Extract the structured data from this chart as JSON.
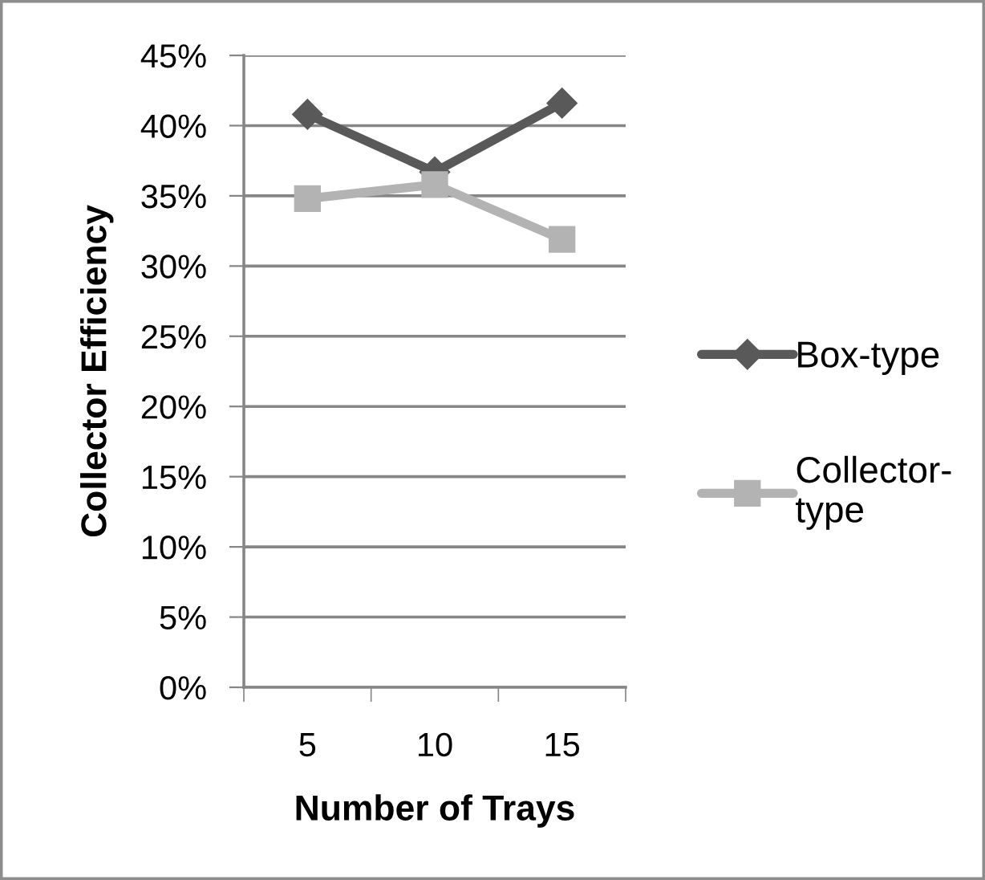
{
  "chart_data": {
    "type": "line",
    "xlabel": "Number of Trays",
    "ylabel": "Collector Efficiency",
    "categories": [
      "5",
      "10",
      "15"
    ],
    "series": [
      {
        "name": "Box-type",
        "color": "#595959",
        "marker": "diamond",
        "values": [
          40.8,
          36.7,
          41.6
        ]
      },
      {
        "name": "Collector-type",
        "color": "#b3b3b3",
        "marker": "square",
        "values": [
          34.8,
          35.8,
          31.9
        ]
      }
    ],
    "ylim": [
      0,
      45
    ],
    "yticks": [
      {
        "value": 0,
        "label": "0%"
      },
      {
        "value": 5,
        "label": "5%"
      },
      {
        "value": 10,
        "label": "10%"
      },
      {
        "value": 15,
        "label": "15%"
      },
      {
        "value": 20,
        "label": "20%"
      },
      {
        "value": 25,
        "label": "25%"
      },
      {
        "value": 30,
        "label": "30%"
      },
      {
        "value": 35,
        "label": "35%"
      },
      {
        "value": 40,
        "label": "40%"
      },
      {
        "value": 45,
        "label": "45%"
      }
    ],
    "grid": "y",
    "legend": "right",
    "line_style": "solid"
  }
}
